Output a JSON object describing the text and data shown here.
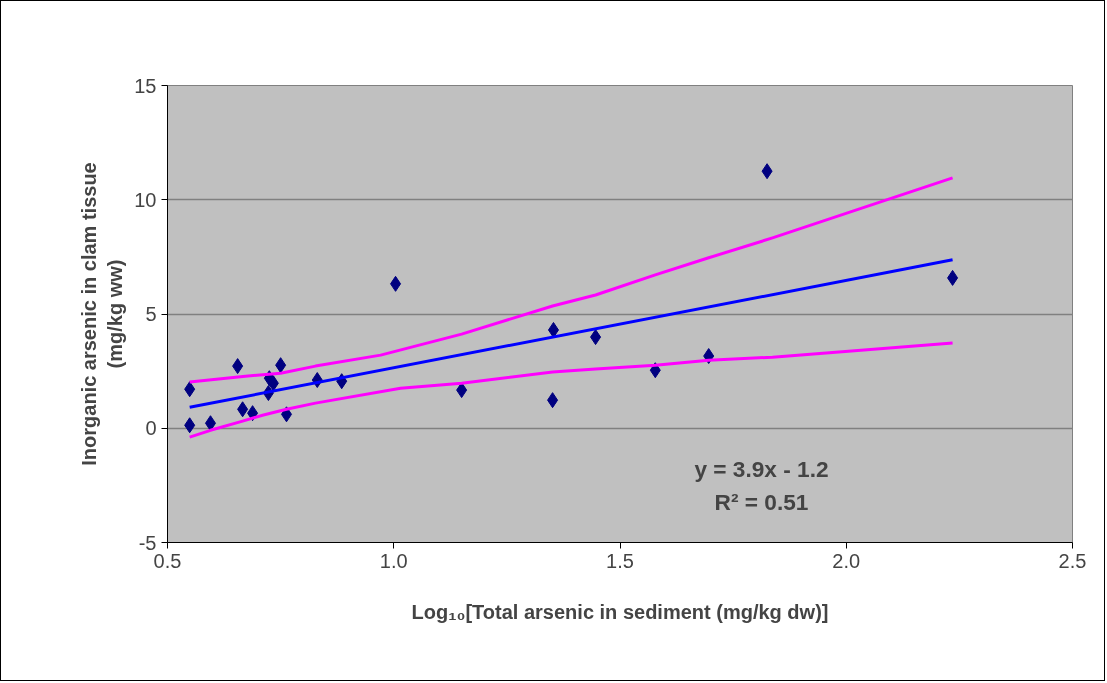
{
  "chart_data": {
    "type": "scatter",
    "xlabel": "Log₁₀[Total arsenic in sediment (mg/kg dw)]",
    "ylabel": "Inorganic arsenic in clam tissue\n(mg/kg ww)",
    "annotations": [
      "y = 3.9x - 1.2",
      "R² = 0.51"
    ],
    "xlim": [
      0.5,
      2.5
    ],
    "xticks": [
      {
        "value": 0.5,
        "label": "0.5"
      },
      {
        "value": 1,
        "label": "1.0"
      },
      {
        "value": 1.5,
        "label": "1.5"
      },
      {
        "value": 2,
        "label": "2.0"
      },
      {
        "value": 2.5,
        "label": "2.5"
      }
    ],
    "ylim": [
      -5,
      15
    ],
    "yticks": [
      -5,
      0,
      5,
      10,
      15
    ],
    "grid": "y",
    "series": [
      {
        "marker": "diamond",
        "color": "#000080",
        "x": [
          0.549,
          0.549,
          0.595,
          0.655,
          0.666,
          0.688,
          0.75,
          0.725,
          0.734,
          0.723,
          0.763,
          0.831,
          0.885,
          1.004,
          1.15,
          1.353,
          1.351,
          1.446,
          1.578,
          1.696,
          1.825,
          2.235
        ],
        "values": [
          0.13,
          1.71,
          0.22,
          2.72,
          0.83,
          0.66,
          2.76,
          2.19,
          1.97,
          1.54,
          0.61,
          2.11,
          2.06,
          6.32,
          1.67,
          4.3,
          1.23,
          3.99,
          2.54,
          3.16,
          11.25,
          6.58
        ]
      },
      {
        "type": "line",
        "marker": "none",
        "color": "#ff00ff",
        "x": [
          0.549,
          0.672,
          0.75,
          0.827,
          0.971,
          1.15,
          1.351,
          1.446,
          1.578,
          1.696,
          1.837,
          2.235
        ],
        "values": [
          2.02,
          2.28,
          2.41,
          2.72,
          3.2,
          4.12,
          5.35,
          5.83,
          6.71,
          7.46,
          8.33,
          10.96
        ]
      },
      {
        "type": "line",
        "marker": "none",
        "color": "#ff00ff",
        "x": [
          0.549,
          0.595,
          0.666,
          0.71,
          0.763,
          0.827,
          1.015,
          1.15,
          1.351,
          1.446,
          1.578,
          1.696,
          1.837,
          2.235
        ],
        "values": [
          -0.39,
          -0.09,
          0.31,
          0.57,
          0.83,
          1.1,
          1.75,
          1.97,
          2.46,
          2.59,
          2.76,
          2.98,
          3.11,
          3.73
        ]
      },
      {
        "type": "line",
        "marker": "none",
        "color": "#0000ff",
        "x": [
          0.549,
          2.235
        ],
        "values": [
          0.92,
          7.37
        ]
      }
    ]
  }
}
